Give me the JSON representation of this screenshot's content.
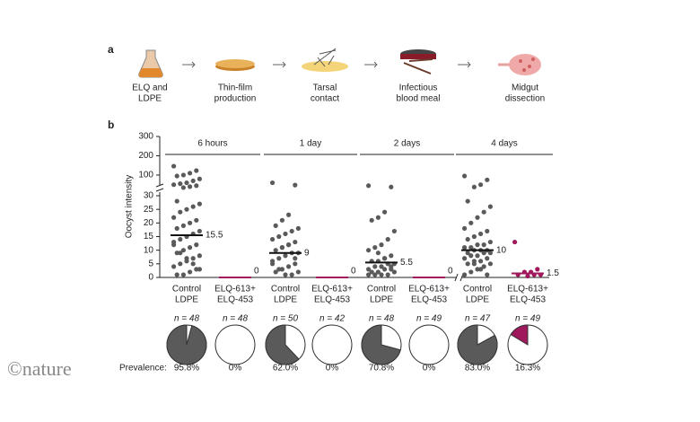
{
  "panel_a": {
    "label": "a",
    "steps": [
      [
        "ELQ and",
        "LDPE"
      ],
      [
        "Thin-film",
        "production"
      ],
      [
        "Tarsal",
        "contact"
      ],
      [
        "Infectious",
        "blood meal"
      ],
      [
        "Midgut",
        "dissection"
      ]
    ]
  },
  "chart_data": {
    "type": "scatter",
    "panel_label": "b",
    "y_label": "Oocyst intensity",
    "ylim_lower": [
      0,
      30
    ],
    "yticks_lower": [
      0,
      5,
      10,
      15,
      20,
      25,
      30
    ],
    "ylim_upper": [
      30,
      300
    ],
    "yticks_upper": [
      100,
      200,
      300
    ],
    "prevalence_title": "Prevalence:",
    "groups": [
      {
        "time": "6 hours",
        "conditions": [
          {
            "label": [
              "Control",
              "LDPE"
            ],
            "color": "#5a5a5a",
            "n_label": "n = 48",
            "median": 15.5,
            "median_label": "15.5",
            "prevalence": 95.8,
            "prevalence_label": "95.8%",
            "values": [
              146,
              123,
              110,
              100,
              95,
              80,
              70,
              60,
              55,
              50,
              45,
              40,
              35,
              28,
              27,
              26,
              25,
              24,
              22,
              21,
              20,
              19,
              18,
              17,
              16,
              15,
              14,
              13,
              12,
              11,
              10,
              9,
              8,
              7,
              6,
              5,
              4,
              3,
              2,
              1,
              1,
              3,
              5,
              7,
              9,
              12
            ]
          },
          {
            "label": [
              "ELQ-613+",
              "ELQ-453"
            ],
            "color": "#a0195c",
            "n_label": "n = 48",
            "median": 0,
            "median_label": "0",
            "prevalence": 0,
            "prevalence_label": "0%",
            "values": []
          }
        ]
      },
      {
        "time": "1 day",
        "conditions": [
          {
            "label": [
              "Control",
              "LDPE"
            ],
            "color": "#5a5a5a",
            "n_label": "n = 50",
            "median": 9,
            "median_label": "9",
            "prevalence": 62.0,
            "prevalence_label": "62.0%",
            "values": [
              60,
              48,
              23,
              21,
              19,
              18,
              17,
              16,
              15,
              14,
              13,
              12,
              11,
              10,
              9,
              9,
              8,
              7,
              6,
              5,
              4,
              3,
              2,
              2,
              1,
              1,
              3,
              5,
              7,
              12,
              11
            ]
          },
          {
            "label": [
              "ELQ-613+",
              "ELQ-453"
            ],
            "color": "#a0195c",
            "n_label": "n = 42",
            "median": 0,
            "median_label": "0",
            "prevalence": 0,
            "prevalence_label": "0%",
            "values": []
          }
        ]
      },
      {
        "time": "2 days",
        "conditions": [
          {
            "label": [
              "Control",
              "LDPE"
            ],
            "color": "#5a5a5a",
            "n_label": "n = 48",
            "median": 5.5,
            "median_label": "5.5",
            "prevalence": 70.8,
            "prevalence_label": "70.8%",
            "values": [
              45,
              38,
              24,
              22,
              21,
              17,
              14,
              12,
              11,
              10,
              8,
              7,
              6,
              6,
              5,
              5,
              4,
              4,
              3,
              3,
              3,
              2,
              2,
              2,
              1,
              1,
              1,
              1,
              4,
              7,
              9
            ]
          },
          {
            "label": [
              "ELQ-613+",
              "ELQ-453"
            ],
            "color": "#a0195c",
            "n_label": "n = 49",
            "median": 0,
            "median_label": "0",
            "prevalence": 0,
            "prevalence_label": "0%",
            "values": []
          }
        ]
      },
      {
        "time": "4 days",
        "conditions": [
          {
            "label": [
              "Control",
              "LDPE"
            ],
            "color": "#5a5a5a",
            "n_label": "n = 47",
            "median": 10,
            "median_label": "10",
            "prevalence": 83.0,
            "prevalence_label": "83.0%",
            "values": [
              95,
              75,
              50,
              38,
              28,
              26,
              24,
              22,
              20,
              18,
              17,
              16,
              15,
              14,
              13,
              12,
              12,
              11,
              11,
              10,
              10,
              10,
              9,
              9,
              9,
              8,
              8,
              7,
              7,
              6,
              6,
              5,
              5,
              4,
              3,
              2,
              1,
              1,
              3,
              5
            ]
          },
          {
            "label": [
              "ELQ-613+",
              "ELQ-453"
            ],
            "color": "#a0195c",
            "n_label": "n = 49",
            "median": 1.5,
            "median_label": "1.5",
            "prevalence": 16.3,
            "prevalence_label": "16.3%",
            "values": [
              13,
              3,
              2,
              2,
              1,
              1,
              1,
              0.5
            ]
          }
        ]
      }
    ]
  },
  "logo": "©nature"
}
